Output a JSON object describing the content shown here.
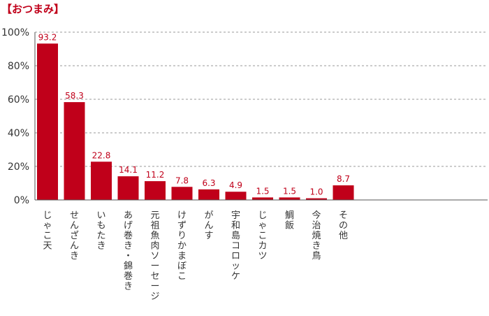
{
  "chart_data": {
    "type": "bar",
    "title": "【おつまみ】",
    "categories": [
      "じゃこ天",
      "せんざんき",
      "いもたき",
      "あげ巻き・錦巻き",
      "元祖魚肉ソーセージ",
      "けずりかまぼこ",
      "がんす",
      "宇和島コロッケ",
      "じゃこカツ",
      "鯛飯",
      "今治焼き鳥",
      "その他"
    ],
    "values": [
      93.2,
      58.3,
      22.8,
      14.1,
      11.2,
      7.8,
      6.3,
      4.9,
      1.5,
      1.5,
      1.0,
      8.7
    ],
    "value_labels": [
      "93.2",
      "58.3",
      "22.8",
      "14.1",
      "11.2",
      "7.8",
      "6.3",
      "4.9",
      "1.5",
      "1.5",
      "1.0",
      "8.7"
    ],
    "yticks": [
      "0%",
      "20%",
      "40%",
      "60%",
      "80%",
      "100%"
    ],
    "ylim": [
      0,
      100
    ],
    "grid": true,
    "bar_color": "#c0001a",
    "xlabel": "",
    "ylabel": ""
  }
}
